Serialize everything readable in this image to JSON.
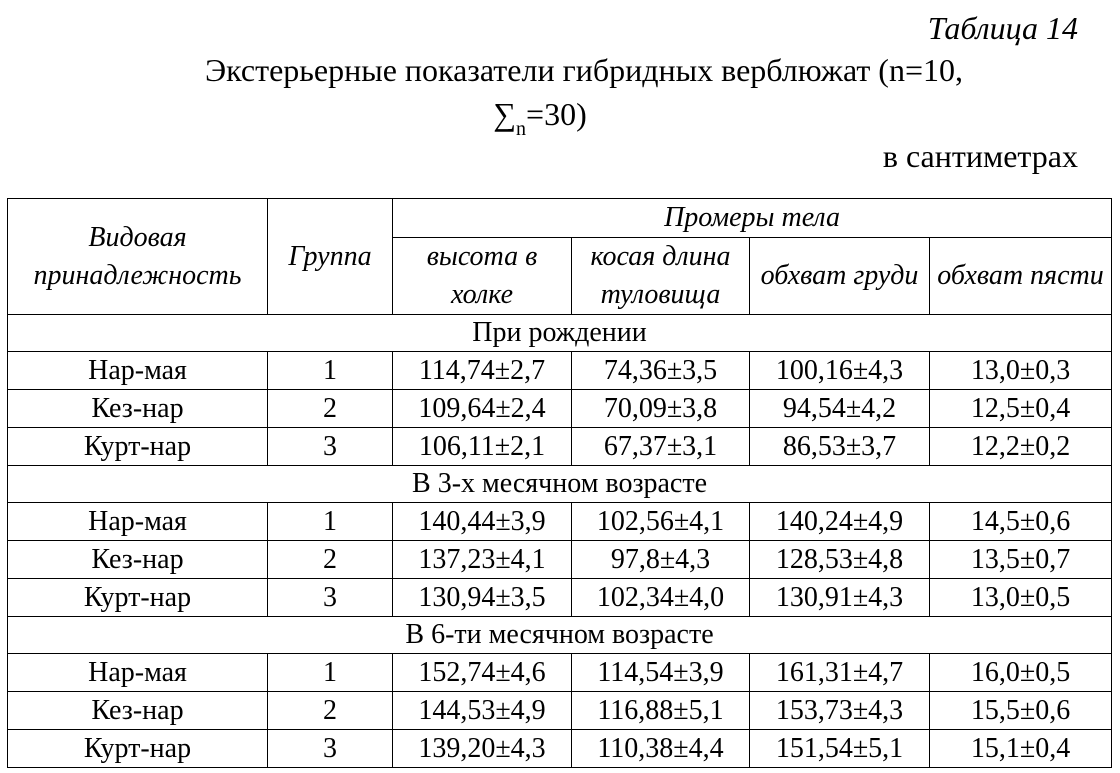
{
  "caption": {
    "label": "Таблица 14",
    "title_line1": "Экстерьерные показатели гибридных верблюжат (n=10,",
    "title_line2_prefix": "∑",
    "title_line2_sub": "n",
    "title_line2_suffix": "=30)",
    "units": "в сантиметрах"
  },
  "table": {
    "headers": {
      "species": "Видовая принадлежность",
      "group": "Группа",
      "measures": "Промеры тела",
      "cols": [
        "высота в холке",
        "косая длина туловища",
        "обхват груди",
        "обхват пясти"
      ]
    },
    "sections": [
      {
        "title": "При рождении",
        "rows": [
          {
            "species": "Нар-мая",
            "group": "1",
            "values": [
              "114,74±2,7",
              "74,36±3,5",
              "100,16±4,3",
              "13,0±0,3"
            ]
          },
          {
            "species": "Кез-нар",
            "group": "2",
            "values": [
              "109,64±2,4",
              "70,09±3,8",
              "94,54±4,2",
              "12,5±0,4"
            ]
          },
          {
            "species": "Курт-нар",
            "group": "3",
            "values": [
              "106,11±2,1",
              "67,37±3,1",
              "86,53±3,7",
              "12,2±0,2"
            ]
          }
        ]
      },
      {
        "title": "В 3-х месячном возрасте",
        "rows": [
          {
            "species": "Нар-мая",
            "group": "1",
            "values": [
              "140,44±3,9",
              "102,56±4,1",
              "140,24±4,9",
              "14,5±0,6"
            ]
          },
          {
            "species": "Кез-нар",
            "group": "2",
            "values": [
              "137,23±4,1",
              "97,8±4,3",
              "128,53±4,8",
              "13,5±0,7"
            ]
          },
          {
            "species": "Курт-нар",
            "group": "3",
            "values": [
              "130,94±3,5",
              "102,34±4,0",
              "130,91±4,3",
              "13,0±0,5"
            ]
          }
        ]
      },
      {
        "title": "В 6-ти месячном возрасте",
        "rows": [
          {
            "species": "Нар-мая",
            "group": "1",
            "values": [
              "152,74±4,6",
              "114,54±3,9",
              "161,31±4,7",
              "16,0±0,5"
            ]
          },
          {
            "species": "Кез-нар",
            "group": "2",
            "values": [
              "144,53±4,9",
              "116,88±5,1",
              "153,73±4,3",
              "15,5±0,6"
            ]
          },
          {
            "species": "Курт-нар",
            "group": "3",
            "values": [
              "139,20±4,3",
              "110,38±4,4",
              "151,54±5,1",
              "15,1±0,4"
            ]
          }
        ]
      }
    ]
  }
}
